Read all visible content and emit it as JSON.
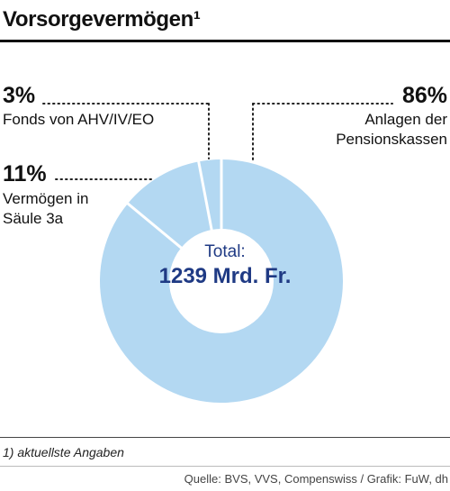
{
  "title": "Vorsorgevermögen¹",
  "chart_data": {
    "type": "pie",
    "donut": true,
    "title": "Vorsorgevermögen¹",
    "center_label": "Total:",
    "center_value": "1239 Mrd. Fr.",
    "slices": [
      {
        "label": "Anlagen der Pensionskassen",
        "label_lines": [
          "Anlagen der",
          "Pensionskassen"
        ],
        "value": 86,
        "display": "86%",
        "color": "#b3d8f2"
      },
      {
        "label": "Vermögen in Säule 3a",
        "label_lines": [
          "Vermögen in",
          "Säule 3a"
        ],
        "value": 11,
        "display": "11%",
        "color": "#b3d8f2"
      },
      {
        "label": "Fonds von AHV/IV/EO",
        "label_lines": [
          "Fonds von AHV/IV/EO"
        ],
        "value": 3,
        "display": "3%",
        "color": "#b3d8f2"
      }
    ],
    "slice_separator_color": "#ffffff",
    "leader_line_style": "dotted"
  },
  "footnote": "1) aktuellste Angaben",
  "source": "Quelle: BVS, VVS, Compenswiss / Grafik: FuW, dh"
}
